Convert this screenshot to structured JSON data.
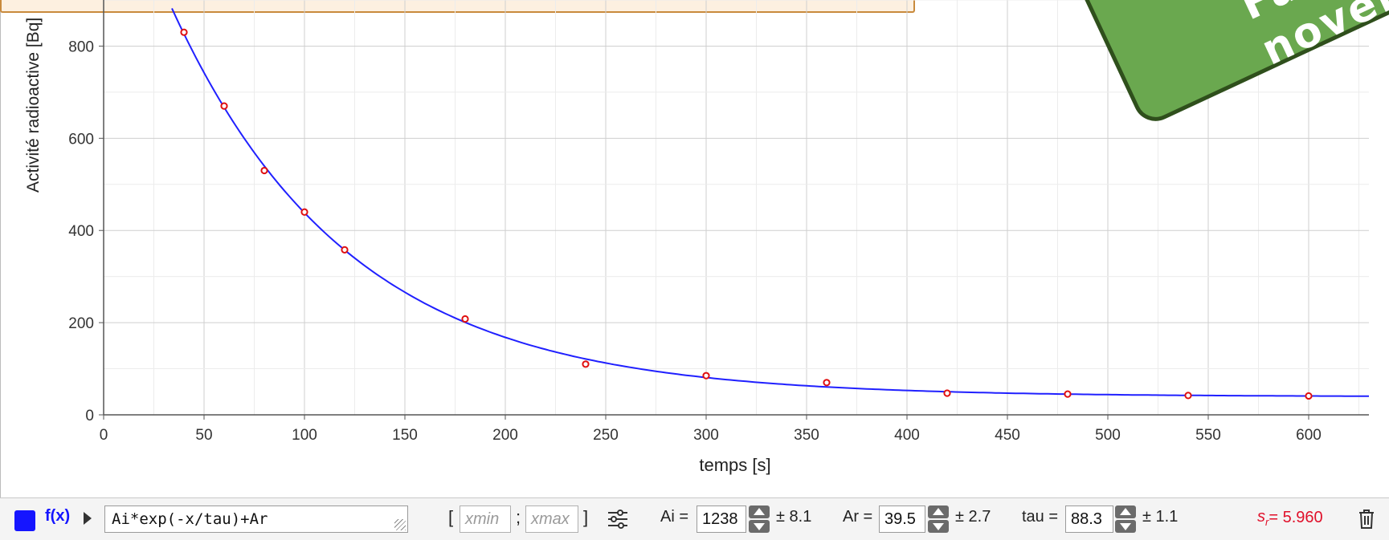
{
  "banner": {
    "lines": [
      "Fait en",
      "novembre"
    ]
  },
  "colors": {
    "curve": "#2020ff",
    "points": "#e01010",
    "badge": "#6aa84f",
    "badge_border": "#2f4f1c",
    "sr": "#e0102a"
  },
  "chart_data": {
    "type": "scatter",
    "title": "",
    "xlabel": "temps [s]",
    "ylabel": "Activité radioactive [Bq]",
    "xlim": [
      0,
      630
    ],
    "ylim": [
      0,
      900
    ],
    "grid": true,
    "x_ticks": [
      0,
      50,
      100,
      150,
      200,
      250,
      300,
      350,
      400,
      450,
      500,
      550,
      600
    ],
    "y_ticks": [
      0,
      200,
      400,
      600,
      800
    ],
    "points": {
      "x": [
        40,
        60,
        80,
        100,
        120,
        180,
        240,
        300,
        360,
        420,
        480,
        540,
        600
      ],
      "y": [
        830,
        670,
        530,
        440,
        358,
        208,
        110,
        85,
        70,
        47,
        45,
        42,
        41
      ]
    },
    "fit": {
      "formula": "Ai*exp(-x/tau)+Ar",
      "Ai": 1238,
      "Ar": 39.5,
      "tau": 88.3
    }
  },
  "toolbar": {
    "fx_label": "f(x)",
    "formula": "Ai*exp(-x/tau)+Ar",
    "xmin_placeholder": "xmin",
    "xmax_placeholder": "xmax",
    "open_bracket": "[",
    "separator": ";",
    "close_bracket": "]",
    "params": [
      {
        "name": "Ai =",
        "value": "1238",
        "error": "± 8.1"
      },
      {
        "name": "Ar =",
        "value": "39.5",
        "error": "± 2.7"
      },
      {
        "name": "tau =",
        "value": "88.3",
        "error": "± 1.1"
      }
    ],
    "sr_symbol": "s",
    "sr_sub": "r",
    "sr_value": " = 5.960"
  }
}
